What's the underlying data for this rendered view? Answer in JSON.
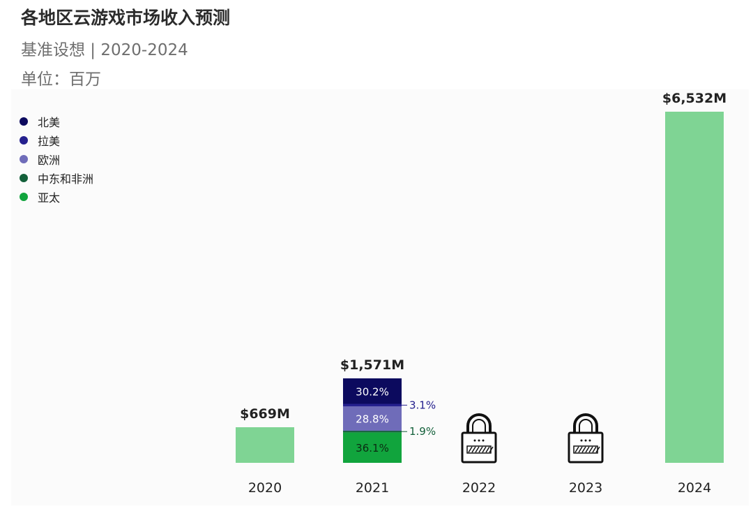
{
  "title": "各地区云游戏市场收入预测",
  "subtitle": "基准设想 | 2020-2024",
  "unit": "单位：百万",
  "legend": [
    {
      "name": "北美",
      "color": "#0c0a5e"
    },
    {
      "name": "拉美",
      "color": "#25208e"
    },
    {
      "name": "欧洲",
      "color": "#6f6cb9"
    },
    {
      "name": "中东和非洲",
      "color": "#13603a"
    },
    {
      "name": "亚太",
      "color": "#11a43d"
    }
  ],
  "chart_data": {
    "type": "bar",
    "title": "各地区云游戏市场收入预测",
    "subtitle": "基准设想 | 2020-2024",
    "ylabel": "单位：百万",
    "categories": [
      "2020",
      "2021",
      "2022",
      "2023",
      "2024"
    ],
    "totals": [
      669,
      1571,
      null,
      null,
      6532
    ],
    "total_labels": [
      "$669M",
      "$1,571M",
      "",
      "",
      "$6,532M"
    ],
    "locked": [
      false,
      false,
      true,
      true,
      false
    ],
    "locked_icon": "lock-icon",
    "total_bar_color": "#7fd494",
    "breakdown_2021": [
      {
        "region": "亚太",
        "share": 36.1,
        "label": "36.1%",
        "color": "#11a43d",
        "label_inside": true
      },
      {
        "region": "中东和非洲",
        "share": 1.9,
        "label": "1.9%",
        "color": "#13603a",
        "label_inside": false
      },
      {
        "region": "欧洲",
        "share": 28.8,
        "label": "28.8%",
        "color": "#6f6cb9",
        "label_inside": true
      },
      {
        "region": "拉美",
        "share": 3.1,
        "label": "3.1%",
        "color": "#25208e",
        "label_inside": false
      },
      {
        "region": "北美",
        "share": 30.2,
        "label": "30.2%",
        "color": "#0c0a5e",
        "label_inside": true
      }
    ],
    "ylim": [
      0,
      6532
    ],
    "grid": false,
    "legend_position": "top-left"
  }
}
